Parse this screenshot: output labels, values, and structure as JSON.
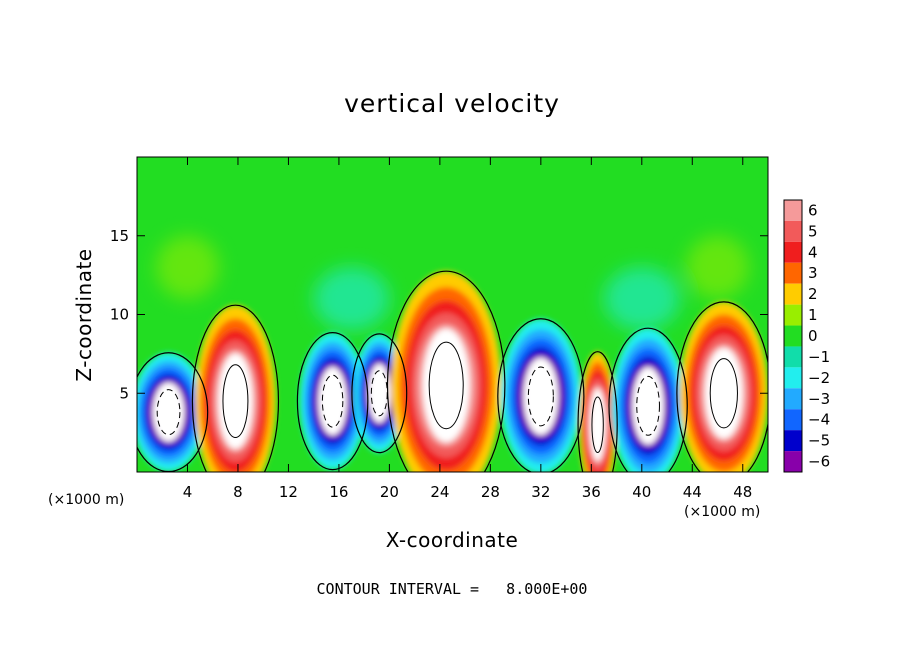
{
  "chart_data": {
    "type": "heatmap",
    "title": "vertical velocity",
    "xlabel": "X-coordinate",
    "ylabel": "Z-coordinate",
    "x_unit": "(×1000 m)",
    "x_unit_right": "(×1000 m)",
    "xlim": [
      0,
      50
    ],
    "ylim": [
      0,
      20
    ],
    "x_ticks": [
      4,
      8,
      12,
      16,
      20,
      24,
      28,
      32,
      36,
      40,
      44,
      48
    ],
    "y_ticks": [
      5,
      10,
      15
    ],
    "colorbar_ticks": [
      "6",
      "5",
      "4",
      "3",
      "2",
      "1",
      "0",
      "−1",
      "−2",
      "−3",
      "−4",
      "−5",
      "−6"
    ],
    "colorbar_values": [
      6,
      5,
      4,
      3,
      2,
      1,
      0,
      -1,
      -2,
      -3,
      -4,
      -5,
      -6
    ],
    "colorbar_colors": [
      "#f59a9a",
      "#f25a5a",
      "#f01e1e",
      "#ff6600",
      "#ffcc00",
      "#99ee00",
      "#22dd22",
      "#11ddaa",
      "#22eeee",
      "#22aaff",
      "#1166ff",
      "#0000cc",
      "#8800aa"
    ],
    "background_color": "#22dd22",
    "footnote": "CONTOUR INTERVAL =   8.000E+00",
    "cells": [
      {
        "x_center": 2.5,
        "z_center": 3.8,
        "half_width": 2.0,
        "half_height": 2.6,
        "kind": "downdraft",
        "w": -6
      },
      {
        "x_center": 7.8,
        "z_center": 4.5,
        "half_width": 2.2,
        "half_height": 4.2,
        "kind": "updraft",
        "w": 6
      },
      {
        "x_center": 15.5,
        "z_center": 4.5,
        "half_width": 1.8,
        "half_height": 3.0,
        "kind": "downdraft",
        "w": -6
      },
      {
        "x_center": 19.2,
        "z_center": 5.0,
        "half_width": 1.4,
        "half_height": 2.6,
        "kind": "downdraft",
        "w": -6
      },
      {
        "x_center": 24.5,
        "z_center": 5.5,
        "half_width": 3.0,
        "half_height": 5.0,
        "kind": "updraft",
        "w": 6
      },
      {
        "x_center": 32.0,
        "z_center": 4.8,
        "half_width": 2.2,
        "half_height": 3.4,
        "kind": "downdraft",
        "w": -6
      },
      {
        "x_center": 36.5,
        "z_center": 3.0,
        "half_width": 1.0,
        "half_height": 3.2,
        "kind": "updraft",
        "w": 5
      },
      {
        "x_center": 40.5,
        "z_center": 4.2,
        "half_width": 2.0,
        "half_height": 3.4,
        "kind": "downdraft",
        "w": -6
      },
      {
        "x_center": 46.5,
        "z_center": 5.0,
        "half_width": 2.4,
        "half_height": 4.0,
        "kind": "updraft",
        "w": 6
      }
    ]
  }
}
